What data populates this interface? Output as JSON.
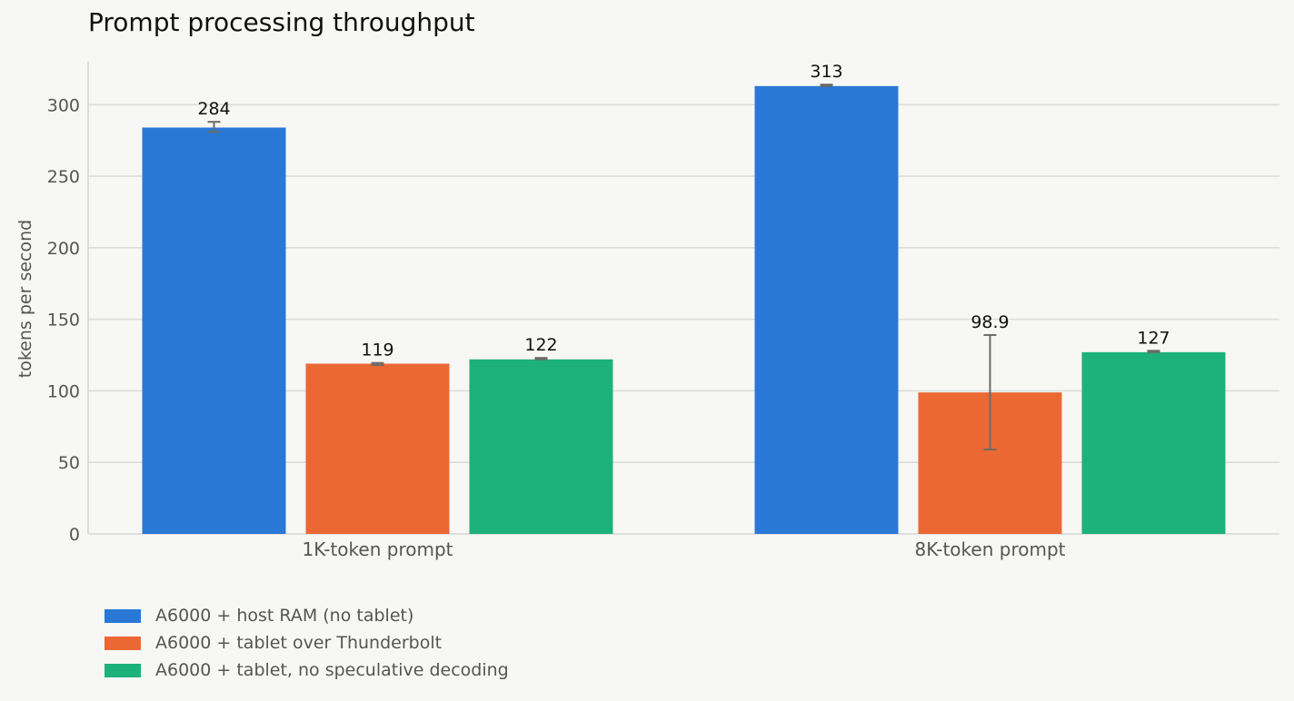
{
  "chart_data": {
    "type": "bar",
    "title": "Prompt processing throughput",
    "xlabel": "",
    "ylabel": "tokens per second",
    "categories": [
      "1K-token prompt",
      "8K-token prompt"
    ],
    "ylim": [
      0,
      330
    ],
    "yticks": [
      0,
      50,
      100,
      150,
      200,
      250,
      300
    ],
    "grid": true,
    "legend_position": "bottom-left",
    "series": [
      {
        "name": "A6000 + host RAM (no tablet)",
        "color": "#2a78d6",
        "values": [
          284,
          313
        ],
        "labels": [
          "284",
          "313"
        ],
        "error_low": [
          281,
          313
        ],
        "error_high": [
          288,
          314
        ]
      },
      {
        "name": "A6000 + tablet over Thunderbolt",
        "color": "#eb6834",
        "values": [
          119,
          98.9
        ],
        "labels": [
          "119",
          "98.9"
        ],
        "error_low": [
          118,
          59
        ],
        "error_high": [
          119.5,
          139
        ]
      },
      {
        "name": "A6000 + tablet, no speculative decoding",
        "color": "#1db17b",
        "values": [
          122,
          127
        ],
        "labels": [
          "122",
          "127"
        ],
        "error_low": [
          122,
          127
        ],
        "error_high": [
          123,
          128
        ]
      }
    ]
  }
}
